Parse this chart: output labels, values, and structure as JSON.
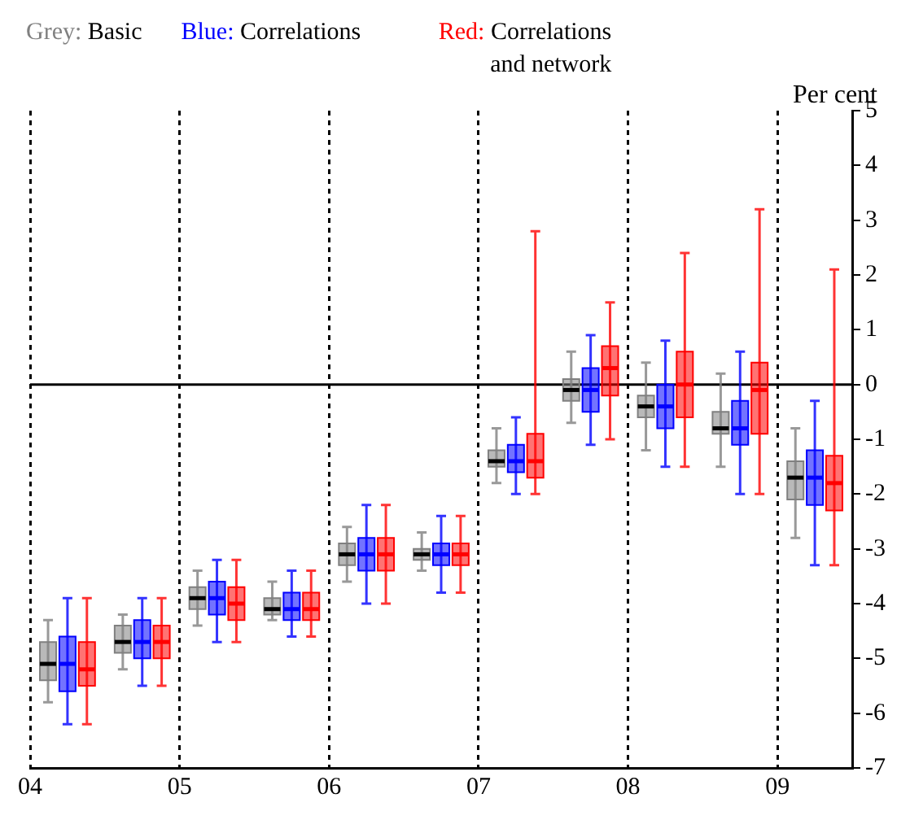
{
  "chart_data": {
    "type": "box",
    "ylabel": "Per cent",
    "x": [
      2004.25,
      2004.75,
      2005.25,
      2005.75,
      2006.25,
      2006.75,
      2007.25,
      2007.75,
      2008.25,
      2008.75,
      2009.25
    ],
    "series": [
      {
        "name": "Grey: Basic",
        "color": "#808080",
        "boxes": [
          {
            "low": -5.8,
            "q1": -5.4,
            "median": -5.1,
            "q3": -4.7,
            "high": -4.3
          },
          {
            "low": -5.2,
            "q1": -4.9,
            "median": -4.7,
            "q3": -4.4,
            "high": -4.2
          },
          {
            "low": -4.4,
            "q1": -4.1,
            "median": -3.9,
            "q3": -3.7,
            "high": -3.4
          },
          {
            "low": -4.3,
            "q1": -4.2,
            "median": -4.1,
            "q3": -3.9,
            "high": -3.6
          },
          {
            "low": -3.6,
            "q1": -3.3,
            "median": -3.1,
            "q3": -2.9,
            "high": -2.6
          },
          {
            "low": -3.4,
            "q1": -3.2,
            "median": -3.1,
            "q3": -3.0,
            "high": -2.7
          },
          {
            "low": -1.8,
            "q1": -1.5,
            "median": -1.4,
            "q3": -1.2,
            "high": -0.8
          },
          {
            "low": -0.7,
            "q1": -0.3,
            "median": -0.1,
            "q3": 0.1,
            "high": 0.6
          },
          {
            "low": -1.2,
            "q1": -0.6,
            "median": -0.4,
            "q3": -0.2,
            "high": 0.4
          },
          {
            "low": -1.5,
            "q1": -0.9,
            "median": -0.8,
            "q3": -0.5,
            "high": 0.2
          },
          {
            "low": -2.8,
            "q1": -2.1,
            "median": -1.7,
            "q3": -1.4,
            "high": -0.8
          }
        ]
      },
      {
        "name": "Blue: Correlations",
        "color": "#0000ff",
        "boxes": [
          {
            "low": -6.2,
            "q1": -5.6,
            "median": -5.1,
            "q3": -4.6,
            "high": -3.9
          },
          {
            "low": -5.5,
            "q1": -5.0,
            "median": -4.7,
            "q3": -4.3,
            "high": -3.9
          },
          {
            "low": -4.7,
            "q1": -4.2,
            "median": -3.9,
            "q3": -3.6,
            "high": -3.2
          },
          {
            "low": -4.6,
            "q1": -4.3,
            "median": -4.1,
            "q3": -3.8,
            "high": -3.4
          },
          {
            "low": -4.0,
            "q1": -3.4,
            "median": -3.1,
            "q3": -2.8,
            "high": -2.2
          },
          {
            "low": -3.8,
            "q1": -3.3,
            "median": -3.1,
            "q3": -2.9,
            "high": -2.4
          },
          {
            "low": -2.0,
            "q1": -1.6,
            "median": -1.4,
            "q3": -1.1,
            "high": -0.6
          },
          {
            "low": -1.1,
            "q1": -0.5,
            "median": -0.1,
            "q3": 0.3,
            "high": 0.9
          },
          {
            "low": -1.5,
            "q1": -0.8,
            "median": -0.4,
            "q3": 0.0,
            "high": 0.8
          },
          {
            "low": -2.0,
            "q1": -1.1,
            "median": -0.8,
            "q3": -0.3,
            "high": 0.6
          },
          {
            "low": -3.3,
            "q1": -2.2,
            "median": -1.7,
            "q3": -1.2,
            "high": -0.3
          }
        ]
      },
      {
        "name": "Red: Correlations and network",
        "color": "#ff0000",
        "boxes": [
          {
            "low": -6.2,
            "q1": -5.5,
            "median": -5.2,
            "q3": -4.7,
            "high": -3.9
          },
          {
            "low": -5.5,
            "q1": -5.0,
            "median": -4.7,
            "q3": -4.4,
            "high": -3.9
          },
          {
            "low": -4.7,
            "q1": -4.3,
            "median": -4.0,
            "q3": -3.7,
            "high": -3.2
          },
          {
            "low": -4.6,
            "q1": -4.3,
            "median": -4.1,
            "q3": -3.8,
            "high": -3.4
          },
          {
            "low": -4.0,
            "q1": -3.4,
            "median": -3.1,
            "q3": -2.8,
            "high": -2.2
          },
          {
            "low": -3.8,
            "q1": -3.3,
            "median": -3.1,
            "q3": -2.9,
            "high": -2.4
          },
          {
            "low": -2.0,
            "q1": -1.7,
            "median": -1.4,
            "q3": -0.9,
            "high": 2.8
          },
          {
            "low": -1.0,
            "q1": -0.2,
            "median": 0.3,
            "q3": 0.7,
            "high": 1.5
          },
          {
            "low": -1.5,
            "q1": -0.6,
            "median": 0.0,
            "q3": 0.6,
            "high": 2.4
          },
          {
            "low": -2.0,
            "q1": -0.9,
            "median": -0.1,
            "q3": 0.4,
            "high": 3.2
          },
          {
            "low": -3.3,
            "q1": -2.3,
            "median": -1.8,
            "q3": -1.3,
            "high": 2.1
          }
        ]
      }
    ],
    "xlim": [
      2004,
      2009.5
    ],
    "xticks": [
      {
        "value": 2004,
        "label": "04"
      },
      {
        "value": 2005,
        "label": "05"
      },
      {
        "value": 2006,
        "label": "06"
      },
      {
        "value": 2007,
        "label": "07"
      },
      {
        "value": 2008,
        "label": "08"
      },
      {
        "value": 2009,
        "label": "09"
      }
    ],
    "ylim": [
      -7,
      5
    ],
    "yticks": [
      -7,
      -6,
      -5,
      -4,
      -3,
      -2,
      -1,
      0,
      1,
      2,
      3,
      4,
      5
    ],
    "grid": "x",
    "legend": "top left",
    "ref_lines": [
      {
        "axis": "y",
        "value": 0,
        "color": "#000000"
      }
    ]
  }
}
